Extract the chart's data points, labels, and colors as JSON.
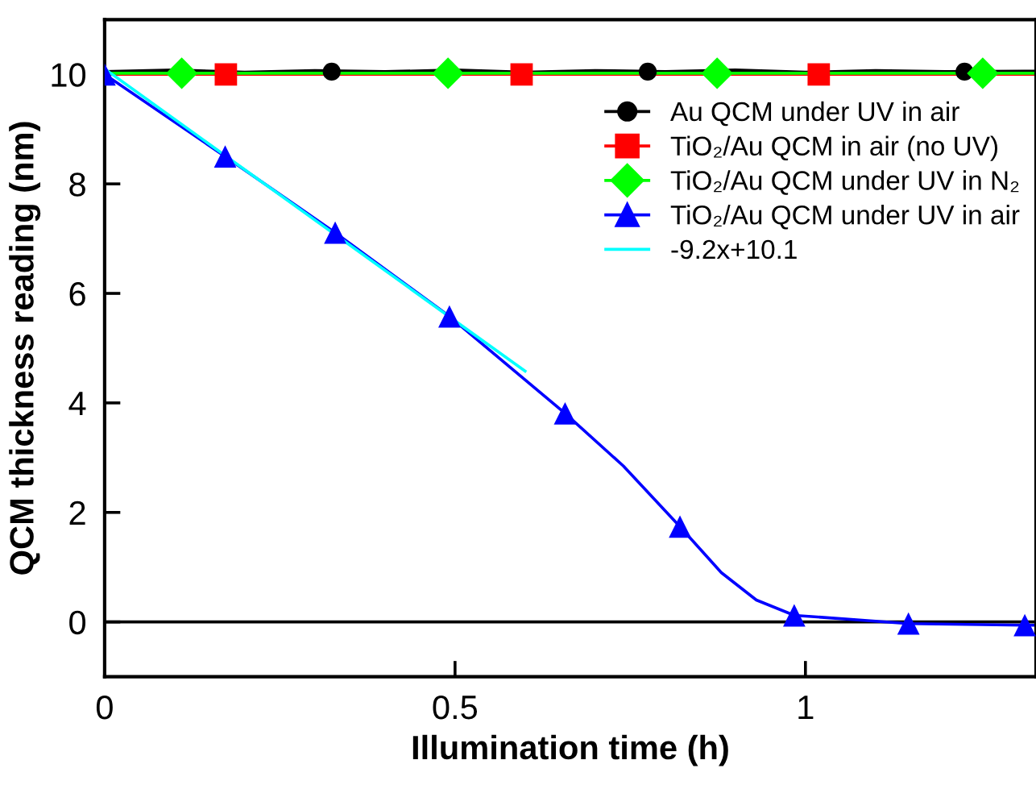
{
  "chart_data": {
    "type": "line",
    "xlabel": "Illumination time (h)",
    "ylabel": "QCM thickness reading (nm)",
    "xlim": [
      0,
      1.329
    ],
    "ylim": [
      -1,
      11
    ],
    "xticks": [
      0,
      0.5,
      1
    ],
    "yticks": [
      0,
      2,
      4,
      6,
      8,
      10
    ],
    "grid": false,
    "legend": "upper right",
    "ref_lines": [
      {
        "axis": "y",
        "value": 0,
        "color": "#000000"
      }
    ],
    "series": [
      {
        "color": "#000000",
        "x": [
          0,
          0.1,
          0.2,
          0.3,
          0.4,
          0.5,
          0.6,
          0.7,
          0.8,
          0.9,
          1.0,
          1.1,
          1.2,
          1.329
        ],
        "values": [
          10.05,
          10.08,
          10.04,
          10.07,
          10.05,
          10.08,
          10.04,
          10.07,
          10.05,
          10.08,
          10.04,
          10.07,
          10.05,
          10.06
        ]
      },
      {
        "color": "#ff0000",
        "x": [
          0,
          1.329
        ],
        "values": [
          10.0,
          10.0
        ]
      },
      {
        "color": "#00ff00",
        "x": [
          0,
          1.329
        ],
        "values": [
          10.02,
          10.02
        ]
      },
      {
        "color": "#0000ff",
        "x": [
          0,
          0.172,
          0.329,
          0.492,
          0.657,
          0.74,
          0.821,
          0.88,
          0.93,
          0.984,
          1.147,
          1.313,
          1.329
        ],
        "values": [
          10.0,
          8.5,
          7.11,
          5.58,
          3.81,
          2.85,
          1.74,
          0.9,
          0.4,
          0.12,
          -0.03,
          -0.06,
          -0.06
        ]
      },
      {
        "type": "scatter",
        "name": "Au QCM under UV in air",
        "color": "#000000",
        "marker": "circle",
        "x": [
          0.324,
          0.775,
          1.227
        ],
        "values": [
          10.05,
          10.05,
          10.05
        ]
      },
      {
        "type": "scatter",
        "name": "TiO₂/Au QCM in air (no UV)",
        "color": "#ff0000",
        "marker": "square",
        "x": [
          0.173,
          0.595,
          1.019
        ],
        "values": [
          10.0,
          10.0,
          10.0
        ]
      },
      {
        "type": "scatter",
        "name": "TiO₂/Au QCM under UV in N₂",
        "color": "#00ff00",
        "marker": "diamond",
        "x": [
          0.11,
          0.49,
          0.874,
          1.253
        ],
        "values": [
          10.02,
          10.02,
          10.02,
          10.02
        ]
      },
      {
        "type": "scatter",
        "name": "TiO₂/Au QCM under UV in air",
        "color": "#0000ff",
        "marker": "triangle",
        "x": [
          0.0,
          0.172,
          0.329,
          0.492,
          0.657,
          0.821,
          0.984,
          1.147,
          1.313
        ],
        "values": [
          10.0,
          8.5,
          7.11,
          5.58,
          3.81,
          1.74,
          0.12,
          -0.03,
          -0.06
        ]
      },
      {
        "name": "-9.2x+10.1",
        "color": "#00ffff",
        "x": [
          0,
          0.6
        ],
        "values": [
          10.1,
          4.58
        ]
      }
    ]
  }
}
